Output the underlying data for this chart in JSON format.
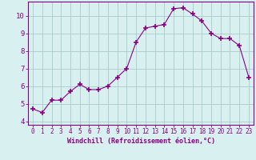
{
  "x": [
    0,
    1,
    2,
    3,
    4,
    5,
    6,
    7,
    8,
    9,
    10,
    11,
    12,
    13,
    14,
    15,
    16,
    17,
    18,
    19,
    20,
    21,
    22,
    23
  ],
  "y": [
    4.7,
    4.5,
    5.2,
    5.2,
    5.7,
    6.1,
    5.8,
    5.8,
    6.0,
    6.5,
    7.0,
    8.5,
    9.3,
    9.4,
    9.5,
    10.4,
    10.45,
    10.1,
    9.7,
    9.0,
    8.7,
    8.7,
    8.3,
    6.5
  ],
  "line_color": "#880088",
  "marker": "+",
  "marker_size": 4,
  "bg_color": "#d8f0f0",
  "grid_color": "#aacccc",
  "xlabel": "Windchill (Refroidissement éolien,°C)",
  "xlabel_color": "#880088",
  "tick_color": "#880088",
  "xlim": [
    -0.5,
    23.5
  ],
  "ylim": [
    3.8,
    10.8
  ],
  "yticks": [
    4,
    5,
    6,
    7,
    8,
    9,
    10
  ],
  "xticks": [
    0,
    1,
    2,
    3,
    4,
    5,
    6,
    7,
    8,
    9,
    10,
    11,
    12,
    13,
    14,
    15,
    16,
    17,
    18,
    19,
    20,
    21,
    22,
    23
  ],
  "spine_color": "#880088",
  "tick_fontsize": 5.5,
  "xlabel_fontsize": 6.0
}
